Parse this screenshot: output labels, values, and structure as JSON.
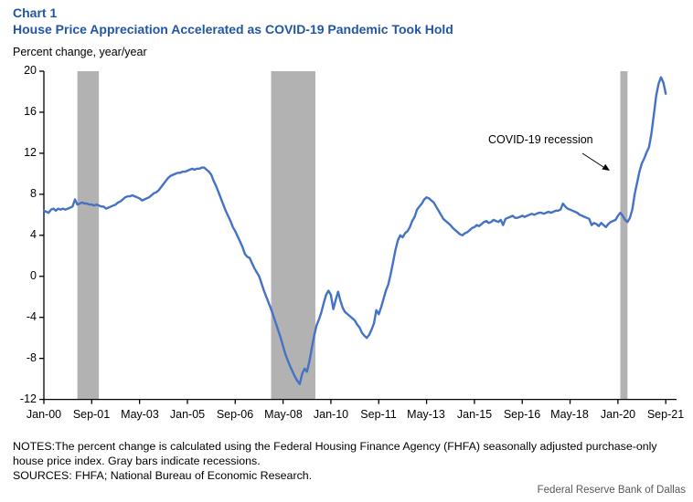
{
  "header": {
    "chart_label": "Chart 1",
    "title": "House Price Appreciation Accelerated as COVID-19 Pandemic Took Hold",
    "y_caption": "Percent change, year/year"
  },
  "notes": {
    "notes": "NOTES:The percent change is calculated using the Federal Housing Finance Agency (FHFA) seasonally adjusted purchase-only house price index. Gray bars indicate recessions.",
    "sources": "SOURCES: FHFA; National Bureau of Economic Research."
  },
  "footer": {
    "brand": "Federal Reserve Bank of Dallas"
  },
  "colors": {
    "title_blue": "#2156a6",
    "line_blue": "#4472c4",
    "recession_gray": "#b2b2b2",
    "axis_black": "#000000",
    "brand_gray": "#595959"
  },
  "chart_data": {
    "type": "line",
    "title": "House Price Appreciation Accelerated as COVID-19 Pandemic Took Hold",
    "ylabel": "Percent change, year/year",
    "xlabel": "",
    "grid": false,
    "legend": "none",
    "ylim": [
      -12,
      20
    ],
    "x_start": "Jan-2000",
    "x_end": "Sep-2021",
    "x_unit": "monthly",
    "y_ticks": [
      20,
      16,
      12,
      8,
      4,
      0,
      -4,
      -8,
      -12
    ],
    "x_tick_labels": [
      "Jan-00",
      "Sep-01",
      "May-03",
      "Jan-05",
      "Sep-06",
      "May-08",
      "Jan-10",
      "Sep-11",
      "May-13",
      "Jan-15",
      "Sep-16",
      "May-18",
      "Jan-20",
      "Sep-21"
    ],
    "x_tick_months": [
      0,
      20,
      40,
      60,
      80,
      100,
      120,
      140,
      160,
      180,
      200,
      220,
      240,
      260
    ],
    "annotation": {
      "text": "COVID-19 recession"
    },
    "recession_color": "#b2b2b2",
    "recessions": [
      {
        "label": "2001 recession",
        "start_month": 14,
        "end_month": 23
      },
      {
        "label": "Great Recession",
        "start_month": 95,
        "end_month": 113.5
      },
      {
        "label": "COVID-19 recession",
        "start_month": 241,
        "end_month": 244
      }
    ],
    "series": [
      {
        "name": "FHFA purchase-only house price index, percent change year/year",
        "color": "#4472c4",
        "start": "Jan-2000",
        "frequency": "monthly",
        "values": [
          6.4,
          6.3,
          6.2,
          6.5,
          6.6,
          6.4,
          6.6,
          6.5,
          6.6,
          6.5,
          6.6,
          6.7,
          6.8,
          7.5,
          7.0,
          7.1,
          7.2,
          7.1,
          7.1,
          7.0,
          7.0,
          6.9,
          7.0,
          6.9,
          6.8,
          6.8,
          6.6,
          6.7,
          6.8,
          6.9,
          7.0,
          7.2,
          7.3,
          7.5,
          7.7,
          7.8,
          7.8,
          7.9,
          7.8,
          7.7,
          7.6,
          7.4,
          7.5,
          7.6,
          7.7,
          7.9,
          8.1,
          8.2,
          8.4,
          8.7,
          9.0,
          9.3,
          9.6,
          9.8,
          9.9,
          10.0,
          10.1,
          10.1,
          10.2,
          10.2,
          10.3,
          10.4,
          10.5,
          10.4,
          10.5,
          10.5,
          10.6,
          10.6,
          10.4,
          10.2,
          9.9,
          9.3,
          8.8,
          8.2,
          7.6,
          7.0,
          6.4,
          5.9,
          5.4,
          4.8,
          4.4,
          3.9,
          3.4,
          2.9,
          2.2,
          1.9,
          1.8,
          1.3,
          0.8,
          0.4,
          0.0,
          -0.7,
          -1.4,
          -2.0,
          -2.6,
          -3.2,
          -3.9,
          -4.6,
          -5.3,
          -6.0,
          -6.8,
          -7.6,
          -8.2,
          -8.8,
          -9.3,
          -9.8,
          -10.2,
          -10.5,
          -9.5,
          -9.0,
          -9.3,
          -8.3,
          -7.0,
          -5.8,
          -4.8,
          -4.2,
          -3.5,
          -2.6,
          -1.8,
          -1.4,
          -1.8,
          -3.2,
          -2.3,
          -1.5,
          -2.4,
          -3.1,
          -3.5,
          -3.7,
          -3.9,
          -4.1,
          -4.3,
          -4.7,
          -5.0,
          -5.5,
          -5.8,
          -6.0,
          -5.7,
          -5.2,
          -4.6,
          -3.3,
          -3.7,
          -3.0,
          -2.2,
          -1.4,
          -0.8,
          0.2,
          1.4,
          2.6,
          3.5,
          4.0,
          3.8,
          4.2,
          4.4,
          4.8,
          5.4,
          5.8,
          6.5,
          6.8,
          7.1,
          7.5,
          7.7,
          7.6,
          7.4,
          7.2,
          6.8,
          6.4,
          6.0,
          5.6,
          5.4,
          5.2,
          5.0,
          4.7,
          4.5,
          4.3,
          4.1,
          4.0,
          4.2,
          4.3,
          4.5,
          4.7,
          4.8,
          5.0,
          4.9,
          5.1,
          5.3,
          5.4,
          5.2,
          5.3,
          5.5,
          5.4,
          5.3,
          5.5,
          5.0,
          5.6,
          5.7,
          5.8,
          5.9,
          5.7,
          5.7,
          5.8,
          5.9,
          5.8,
          5.9,
          6.0,
          6.1,
          6.0,
          6.1,
          6.2,
          6.2,
          6.1,
          6.2,
          6.3,
          6.2,
          6.3,
          6.4,
          6.4,
          6.5,
          7.1,
          6.8,
          6.6,
          6.5,
          6.4,
          6.3,
          6.2,
          6.0,
          5.9,
          5.8,
          5.7,
          5.6,
          5.0,
          5.2,
          5.1,
          4.9,
          5.2,
          5.0,
          4.8,
          5.1,
          5.3,
          5.4,
          5.5,
          5.9,
          6.2,
          5.9,
          5.5,
          5.3,
          5.7,
          6.5,
          8.0,
          9.1,
          10.2,
          11.0,
          11.5,
          12.1,
          12.6,
          13.9,
          15.7,
          17.6,
          18.8,
          19.4,
          18.9,
          17.8
        ]
      }
    ]
  }
}
